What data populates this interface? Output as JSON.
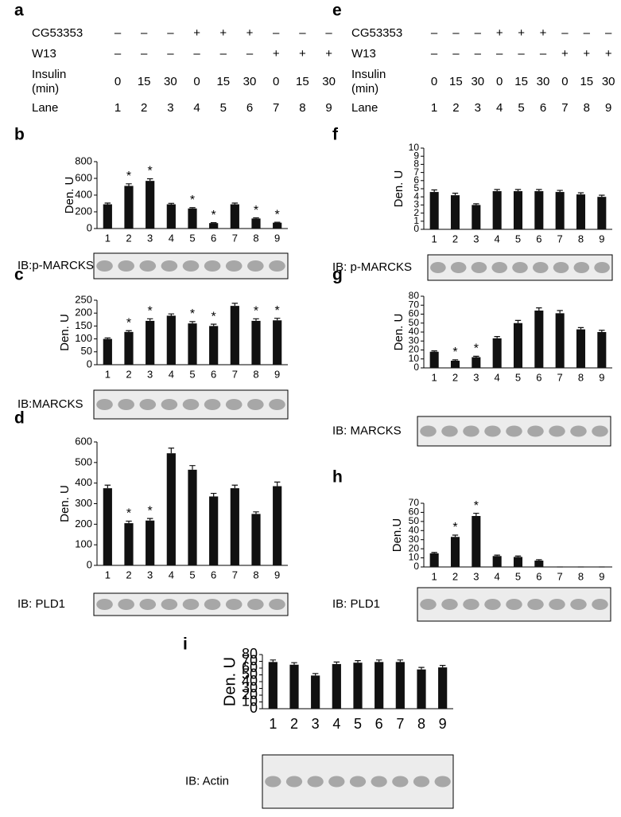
{
  "tables": [
    {
      "panel": "a",
      "rows": [
        {
          "label": [
            "CG53353"
          ],
          "cells": [
            "–",
            "–",
            "–",
            "+",
            "+",
            "+",
            "–",
            "–",
            "–"
          ]
        },
        {
          "label": [
            "W13"
          ],
          "cells": [
            "–",
            "–",
            "–",
            "–",
            "–",
            "–",
            "+",
            "+",
            "+"
          ]
        },
        {
          "label": [
            "Insulin",
            "(min)"
          ],
          "cells": [
            "0",
            "15",
            "30",
            "0",
            "15",
            "30",
            "0",
            "15",
            "30"
          ]
        },
        {
          "label": [
            "Lane"
          ],
          "cells": [
            "1",
            "2",
            "3",
            "4",
            "5",
            "6",
            "7",
            "8",
            "9"
          ]
        }
      ]
    },
    {
      "panel": "e",
      "rows": [
        {
          "label": [
            "CG53353"
          ],
          "cells": [
            "–",
            "–",
            "–",
            "+",
            "+",
            "+",
            "–",
            "–",
            "–"
          ]
        },
        {
          "label": [
            "W13"
          ],
          "cells": [
            "–",
            "–",
            "–",
            "–",
            "–",
            "–",
            "+",
            "+",
            "+"
          ]
        },
        {
          "label": [
            "Insulin",
            "(min)"
          ],
          "cells": [
            "0",
            "15",
            "30",
            "0",
            "15",
            "30",
            "0",
            "15",
            "30"
          ]
        },
        {
          "label": [
            "Lane"
          ],
          "cells": [
            "1",
            "2",
            "3",
            "4",
            "5",
            "6",
            "7",
            "8",
            "9"
          ]
        }
      ]
    }
  ],
  "chart_data": [
    {
      "type": "bar",
      "panel": "b",
      "ylabel": "Den. U",
      "blot_label": "IB:p-MARCKS",
      "color": "#111111",
      "categories": [
        "1",
        "2",
        "3",
        "4",
        "5",
        "6",
        "7",
        "8",
        "9"
      ],
      "values": [
        290,
        510,
        570,
        290,
        240,
        65,
        290,
        120,
        70
      ],
      "errors": [
        15,
        25,
        25,
        12,
        10,
        5,
        15,
        8,
        5
      ],
      "significance": [
        null,
        "*",
        "*",
        null,
        "*",
        "*",
        null,
        "*",
        "*"
      ],
      "ylim": [
        0,
        800
      ],
      "yticks": [
        0,
        200,
        400,
        600,
        800
      ]
    },
    {
      "type": "bar",
      "panel": "c",
      "ylabel": "Den. U",
      "blot_label": "IB:MARCKS",
      "color": "#111111",
      "categories": [
        "1",
        "2",
        "3",
        "4",
        "5",
        "6",
        "7",
        "8",
        "9"
      ],
      "values": [
        100,
        127,
        170,
        190,
        160,
        150,
        228,
        170,
        172
      ],
      "errors": [
        4,
        5,
        8,
        7,
        7,
        7,
        10,
        8,
        8
      ],
      "significance": [
        null,
        "*",
        "*",
        null,
        "*",
        "*",
        null,
        "*",
        "*"
      ],
      "ylim": [
        0,
        250
      ],
      "yticks": [
        0,
        50,
        100,
        150,
        200,
        250
      ]
    },
    {
      "type": "bar",
      "panel": "d",
      "ylabel": "Den. U",
      "blot_label": "IB: PLD1",
      "color": "#111111",
      "categories": [
        "1",
        "2",
        "3",
        "4",
        "5",
        "6",
        "7",
        "8",
        "9"
      ],
      "values": [
        375,
        205,
        218,
        545,
        465,
        335,
        375,
        250,
        385
      ],
      "errors": [
        15,
        10,
        10,
        25,
        20,
        15,
        15,
        10,
        20
      ],
      "significance": [
        null,
        "*",
        "*",
        null,
        null,
        null,
        null,
        null,
        null
      ],
      "ylim": [
        0,
        600
      ],
      "yticks": [
        0,
        100,
        200,
        300,
        400,
        500,
        600
      ]
    },
    {
      "type": "bar",
      "panel": "f",
      "ylabel": "Den. U",
      "blot_label": "IB: p-MARCKS",
      "color": "#111111",
      "categories": [
        "1",
        "2",
        "3",
        "4",
        "5",
        "6",
        "7",
        "8",
        "9"
      ],
      "values": [
        4.6,
        4.2,
        3.0,
        4.7,
        4.7,
        4.7,
        4.6,
        4.3,
        4.0
      ],
      "errors": [
        0.25,
        0.25,
        0.15,
        0.2,
        0.2,
        0.2,
        0.2,
        0.2,
        0.2
      ],
      "significance": [
        null,
        null,
        null,
        null,
        null,
        null,
        null,
        null,
        null
      ],
      "ylim": [
        0,
        10
      ],
      "yticks": [
        0,
        1,
        2,
        3,
        4,
        5,
        6,
        7,
        8,
        9,
        10
      ]
    },
    {
      "type": "bar",
      "panel": "g",
      "ylabel": "Den. U",
      "blot_label": "IB: MARCKS",
      "color": "#111111",
      "categories": [
        "1",
        "2",
        "3",
        "4",
        "5",
        "6",
        "7",
        "8",
        "9"
      ],
      "values": [
        18,
        8,
        12,
        33,
        50,
        64,
        61,
        43,
        40
      ],
      "errors": [
        1,
        1,
        1,
        2,
        3,
        3,
        3,
        2,
        2
      ],
      "significance": [
        null,
        "*",
        "*",
        null,
        null,
        null,
        null,
        null,
        null
      ],
      "ylim": [
        0,
        80
      ],
      "yticks": [
        0,
        10,
        20,
        30,
        40,
        50,
        60,
        70,
        80
      ]
    },
    {
      "type": "bar",
      "panel": "h",
      "ylabel": "Den.U",
      "blot_label": "IB: PLD1",
      "color": "#111111",
      "categories": [
        "1",
        "2",
        "3",
        "4",
        "5",
        "6",
        "7",
        "8",
        "9"
      ],
      "values": [
        15,
        33,
        56,
        12,
        11,
        7,
        0,
        0,
        0
      ],
      "errors": [
        1,
        2,
        3,
        1,
        1,
        1,
        0,
        0,
        0
      ],
      "significance": [
        null,
        "*",
        "*",
        null,
        null,
        null,
        null,
        null,
        null
      ],
      "ylim": [
        0,
        70
      ],
      "yticks": [
        0,
        10,
        20,
        30,
        40,
        50,
        60,
        70
      ]
    },
    {
      "type": "bar",
      "panel": "i",
      "ylabel": "Den. U",
      "blot_label": "IB: Actin",
      "color": "#111111",
      "categories": [
        "1",
        "2",
        "3",
        "4",
        "5",
        "6",
        "7",
        "8",
        "9"
      ],
      "values": [
        69,
        65,
        49,
        66,
        68,
        69,
        69,
        58,
        61
      ],
      "errors": [
        3,
        3,
        3,
        3,
        3,
        3,
        3,
        3,
        3
      ],
      "significance": [
        null,
        null,
        null,
        null,
        null,
        null,
        null,
        null,
        null
      ],
      "ylim": [
        0,
        80
      ],
      "yticks": [
        0,
        10,
        20,
        30,
        40,
        50,
        60,
        70,
        80
      ]
    }
  ]
}
